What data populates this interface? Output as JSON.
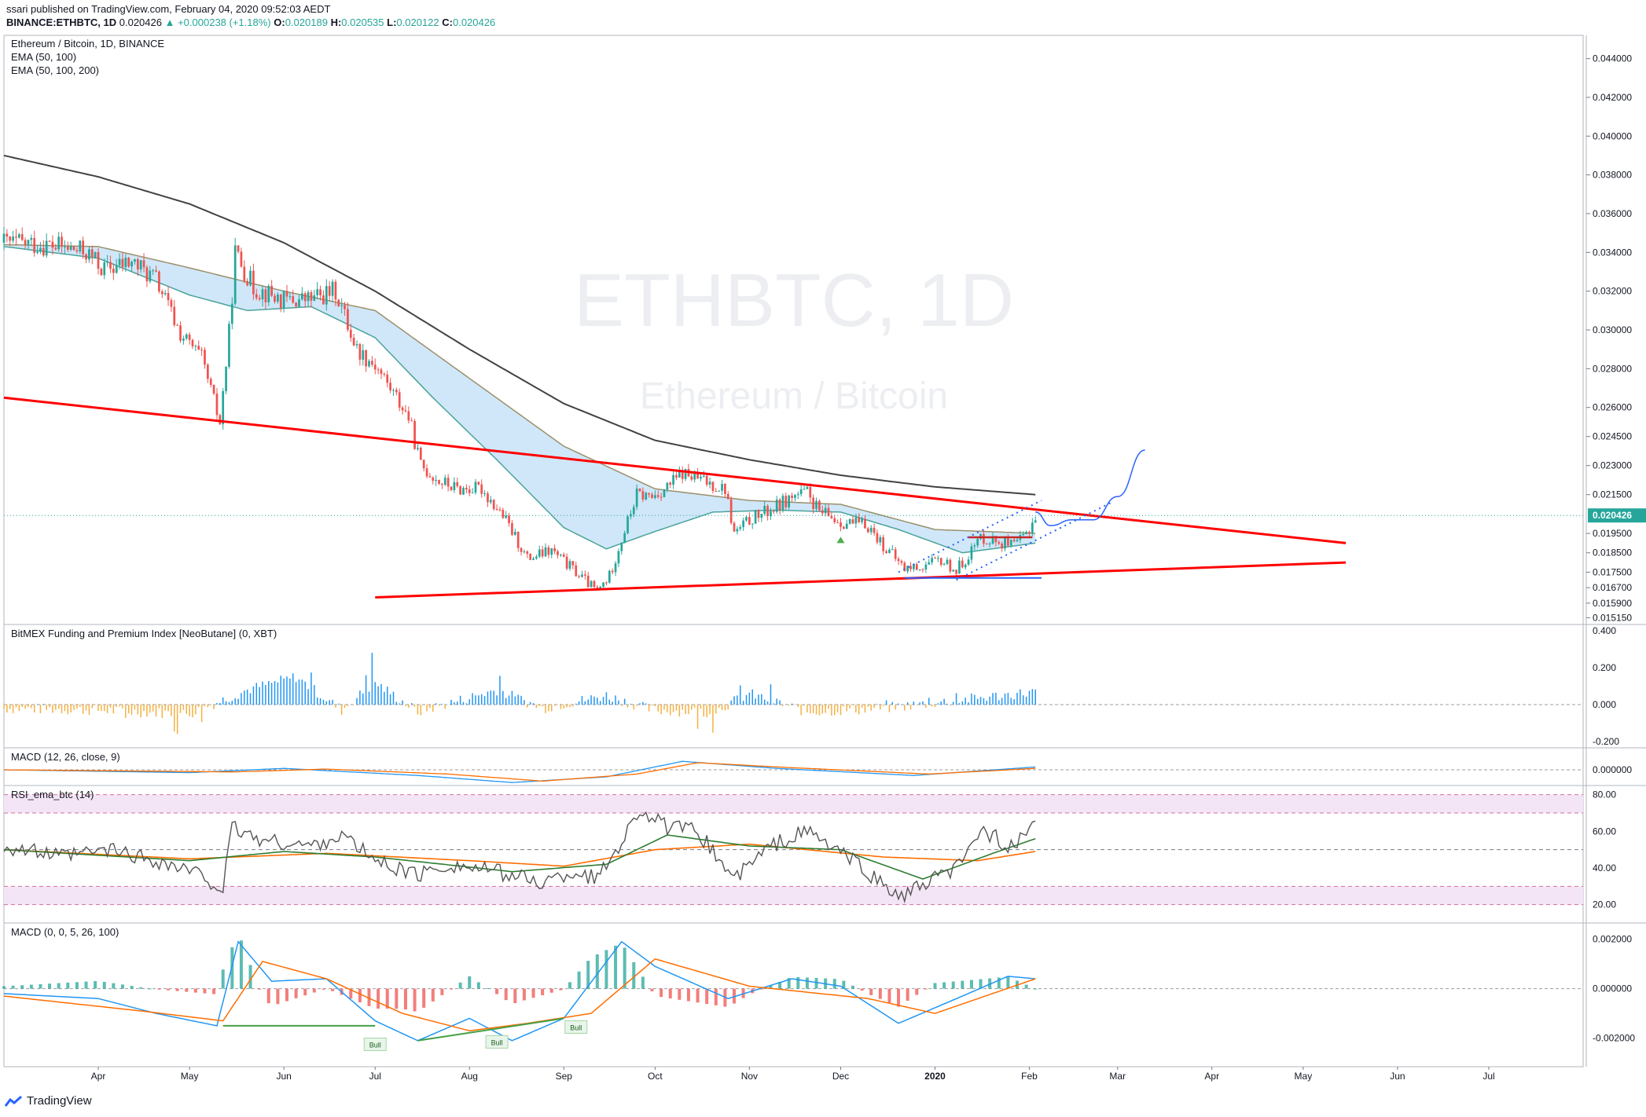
{
  "header": {
    "published": "ssari published on TradingView.com, February 04, 2020 09:52:03 AEDT",
    "symbol": "BINANCE:ETHBTC, 1D",
    "last": "0.020426",
    "change": "▲ +0.000238 (+1.18%)",
    "open_label": "O:",
    "open": "0.020189",
    "high_label": "H:",
    "high": "0.020535",
    "low_label": "L:",
    "low": "0.020122",
    "close_label": "C:",
    "close": "0.020426"
  },
  "brand": {
    "name": "TradingView"
  },
  "colors": {
    "up": "#26a69a",
    "down": "#ef5350",
    "trend": "#ff0000",
    "ema_band": "#bfdff7",
    "ema50": "#4aa39a",
    "ema100": "#9c8f6a",
    "ema200": "#424242",
    "blue": "#2962ff",
    "macd": "#2196f3",
    "signal": "#ff6d00",
    "rsi": "#555555",
    "rsi_band": "#f3e5f5",
    "funding_up": "#2196f3",
    "funding_down": "#f5b041",
    "bull": "#1b5e20"
  },
  "chart_data": [
    {
      "type": "candlestick",
      "title": "Ethereum / Bitcoin, 1D, BINANCE",
      "indicators": [
        "EMA (50, 100)",
        "EMA (50, 100, 200)"
      ],
      "watermark_symbol": "ETHBTC, 1D",
      "watermark_name": "Ethereum / Bitcoin",
      "last_price": "0.020426",
      "ylim": [
        0.0148,
        0.0452
      ],
      "y_ticks": [
        "0.044000",
        "0.042000",
        "0.040000",
        "0.038000",
        "0.036000",
        "0.034000",
        "0.032000",
        "0.030000",
        "0.028000",
        "0.026000",
        "0.024500",
        "0.023000",
        "0.021500",
        "0.019500",
        "0.018500",
        "0.017500",
        "0.016700",
        "0.015900",
        "0.015150"
      ],
      "x_ticks": [
        {
          "label": "Apr",
          "date": "2019-04-01"
        },
        {
          "label": "May",
          "date": "2019-05-01"
        },
        {
          "label": "Jun",
          "date": "2019-06-01"
        },
        {
          "label": "Jul",
          "date": "2019-07-01"
        },
        {
          "label": "Aug",
          "date": "2019-08-01"
        },
        {
          "label": "Sep",
          "date": "2019-09-01"
        },
        {
          "label": "Oct",
          "date": "2019-10-01"
        },
        {
          "label": "Nov",
          "date": "2019-11-01"
        },
        {
          "label": "Dec",
          "date": "2019-12-01"
        },
        {
          "label": "2020",
          "date": "2020-01-01"
        },
        {
          "label": "Feb",
          "date": "2020-02-01"
        },
        {
          "label": "Mar",
          "date": "2020-03-01"
        },
        {
          "label": "Apr",
          "date": "2020-04-01"
        },
        {
          "label": "May",
          "date": "2020-05-01"
        },
        {
          "label": "Jun",
          "date": "2020-06-01"
        },
        {
          "label": "Jul",
          "date": "2020-07-01"
        }
      ],
      "close_series": [
        [
          "2019-03-01",
          0.0345
        ],
        [
          "2019-03-15",
          0.0344
        ],
        [
          "2019-03-28",
          0.034
        ],
        [
          "2019-04-03",
          0.0331
        ],
        [
          "2019-04-12",
          0.0335
        ],
        [
          "2019-04-20",
          0.0326
        ],
        [
          "2019-04-28",
          0.0298
        ],
        [
          "2019-05-05",
          0.0285
        ],
        [
          "2019-05-11",
          0.0252
        ],
        [
          "2019-05-14",
          0.0298
        ],
        [
          "2019-05-16",
          0.034
        ],
        [
          "2019-05-22",
          0.0322
        ],
        [
          "2019-06-01",
          0.0315
        ],
        [
          "2019-06-10",
          0.0316
        ],
        [
          "2019-06-18",
          0.032
        ],
        [
          "2019-06-25",
          0.029
        ],
        [
          "2019-07-01",
          0.0282
        ],
        [
          "2019-07-06",
          0.027
        ],
        [
          "2019-07-12",
          0.0255
        ],
        [
          "2019-07-16",
          0.023
        ],
        [
          "2019-07-22",
          0.0222
        ],
        [
          "2019-07-28",
          0.0218
        ],
        [
          "2019-08-05",
          0.0218
        ],
        [
          "2019-08-12",
          0.0204
        ],
        [
          "2019-08-20",
          0.0182
        ],
        [
          "2019-08-28",
          0.0186
        ],
        [
          "2019-09-05",
          0.0175
        ],
        [
          "2019-09-12",
          0.0165
        ],
        [
          "2019-09-16",
          0.0173
        ],
        [
          "2019-09-20",
          0.0192
        ],
        [
          "2019-09-25",
          0.0215
        ],
        [
          "2019-09-30",
          0.0214
        ],
        [
          "2019-10-05",
          0.0219
        ],
        [
          "2019-10-10",
          0.0226
        ],
        [
          "2019-10-17",
          0.0222
        ],
        [
          "2019-10-24",
          0.0218
        ],
        [
          "2019-10-27",
          0.0195
        ],
        [
          "2019-11-02",
          0.0203
        ],
        [
          "2019-11-08",
          0.0207
        ],
        [
          "2019-11-15",
          0.0214
        ],
        [
          "2019-11-20",
          0.0216
        ],
        [
          "2019-11-24",
          0.0206
        ],
        [
          "2019-12-01",
          0.0201
        ],
        [
          "2019-12-10",
          0.0199
        ],
        [
          "2019-12-16",
          0.0187
        ],
        [
          "2019-12-22",
          0.0177
        ],
        [
          "2019-12-28",
          0.0178
        ],
        [
          "2020-01-03",
          0.0181
        ],
        [
          "2020-01-08",
          0.0176
        ],
        [
          "2020-01-12",
          0.0184
        ],
        [
          "2020-01-16",
          0.0193
        ],
        [
          "2020-01-22",
          0.0191
        ],
        [
          "2020-01-27",
          0.0188
        ],
        [
          "2020-01-31",
          0.0195
        ],
        [
          "2020-02-03",
          0.0204
        ]
      ],
      "ema200": [
        [
          "2019-03-01",
          0.039
        ],
        [
          "2019-04-01",
          0.0379
        ],
        [
          "2019-05-01",
          0.0365
        ],
        [
          "2019-06-01",
          0.0345
        ],
        [
          "2019-07-01",
          0.032
        ],
        [
          "2019-08-01",
          0.029
        ],
        [
          "2019-09-01",
          0.0262
        ],
        [
          "2019-10-01",
          0.0243
        ],
        [
          "2019-11-01",
          0.0233
        ],
        [
          "2019-12-01",
          0.0225
        ],
        [
          "2020-01-01",
          0.0219
        ],
        [
          "2020-02-03",
          0.0215
        ]
      ],
      "ema50": [
        [
          "2019-03-01",
          0.0343
        ],
        [
          "2019-04-01",
          0.0337
        ],
        [
          "2019-05-01",
          0.0318
        ],
        [
          "2019-05-20",
          0.031
        ],
        [
          "2019-06-10",
          0.0312
        ],
        [
          "2019-07-01",
          0.0296
        ],
        [
          "2019-07-20",
          0.0265
        ],
        [
          "2019-08-10",
          0.0233
        ],
        [
          "2019-09-01",
          0.0198
        ],
        [
          "2019-09-15",
          0.0187
        ],
        [
          "2019-10-01",
          0.0196
        ],
        [
          "2019-10-20",
          0.0206
        ],
        [
          "2019-11-10",
          0.0207
        ],
        [
          "2019-12-01",
          0.0206
        ],
        [
          "2019-12-20",
          0.0197
        ],
        [
          "2020-01-10",
          0.0185
        ],
        [
          "2020-02-03",
          0.019
        ]
      ],
      "ema100": [
        [
          "2019-03-01",
          0.0344
        ],
        [
          "2019-04-01",
          0.0343
        ],
        [
          "2019-05-01",
          0.0332
        ],
        [
          "2019-06-01",
          0.032
        ],
        [
          "2019-07-01",
          0.031
        ],
        [
          "2019-08-01",
          0.0275
        ],
        [
          "2019-09-01",
          0.024
        ],
        [
          "2019-10-01",
          0.0218
        ],
        [
          "2019-11-01",
          0.0212
        ],
        [
          "2019-12-01",
          0.021
        ],
        [
          "2020-01-01",
          0.0197
        ],
        [
          "2020-02-03",
          0.0195
        ]
      ],
      "annotations": {
        "upper_trendline": [
          [
            "2019-03-01",
            0.0265
          ],
          [
            "2020-05-15",
            0.019
          ]
        ],
        "lower_trendline": [
          [
            "2019-07-01",
            0.0162
          ],
          [
            "2020-05-15",
            0.018
          ]
        ],
        "box_top": [
          [
            "2020-01-12",
            0.0193
          ],
          [
            "2020-02-02",
            0.0193
          ]
        ],
        "support_line": [
          [
            "2019-12-22",
            0.0172
          ],
          [
            "2020-02-05",
            0.0172
          ]
        ],
        "channel_top": [
          [
            "2019-12-20",
            0.0175
          ],
          [
            "2020-02-05",
            0.0212
          ]
        ],
        "channel_bottom": [
          [
            "2020-01-08",
            0.0171
          ],
          [
            "2020-02-28",
            0.0211
          ]
        ],
        "projection": [
          [
            "2020-02-03",
            0.0206
          ],
          [
            "2020-02-08",
            0.0199
          ],
          [
            "2020-02-15",
            0.0202
          ],
          [
            "2020-02-22",
            0.0202
          ],
          [
            "2020-03-01",
            0.0214
          ],
          [
            "2020-03-10",
            0.0238
          ]
        ]
      }
    },
    {
      "type": "bar",
      "title": "BitMEX Funding and Premium Index [NeoButane] (0, XBT)",
      "y_ticks": [
        "0.400",
        "0.200",
        "0.000",
        "-0.200"
      ],
      "ylim": [
        -0.2,
        0.4
      ],
      "profile": [
        [
          "2019-03-01",
          -0.02
        ],
        [
          "2019-04-01",
          -0.03
        ],
        [
          "2019-05-01",
          -0.05
        ],
        [
          "2019-05-20",
          0.08
        ],
        [
          "2019-06-05",
          0.15
        ],
        [
          "2019-06-20",
          -0.03
        ],
        [
          "2019-07-01",
          0.12
        ],
        [
          "2019-07-15",
          -0.04
        ],
        [
          "2019-08-10",
          0.08
        ],
        [
          "2019-08-25",
          -0.02
        ],
        [
          "2019-09-15",
          0.05
        ],
        [
          "2019-09-30",
          -0.03
        ],
        [
          "2019-10-20",
          -0.04
        ],
        [
          "2019-11-01",
          0.06
        ],
        [
          "2019-11-20",
          -0.04
        ],
        [
          "2019-12-15",
          -0.02
        ],
        [
          "2020-01-01",
          0.01
        ],
        [
          "2020-02-03",
          0.07
        ]
      ]
    },
    {
      "type": "line",
      "title": "MACD (12, 26, close, 9)",
      "y_ticks": [
        "0.000000"
      ],
      "macd": [
        [
          "2019-03-01",
          0.0
        ],
        [
          "2019-05-01",
          -0.2
        ],
        [
          "2019-06-01",
          0.1
        ],
        [
          "2019-07-15",
          -0.4
        ],
        [
          "2019-08-15",
          -0.9
        ],
        [
          "2019-09-15",
          -0.5
        ],
        [
          "2019-10-10",
          0.6
        ],
        [
          "2019-11-10",
          0.1
        ],
        [
          "2019-12-25",
          -0.4
        ],
        [
          "2020-02-03",
          0.2
        ]
      ],
      "signal": [
        [
          "2019-03-01",
          0.0
        ],
        [
          "2019-05-15",
          -0.15
        ],
        [
          "2019-06-15",
          0.05
        ],
        [
          "2019-07-25",
          -0.3
        ],
        [
          "2019-08-25",
          -0.8
        ],
        [
          "2019-09-25",
          -0.3
        ],
        [
          "2019-10-15",
          0.5
        ],
        [
          "2019-11-15",
          0.15
        ],
        [
          "2019-12-30",
          -0.3
        ],
        [
          "2020-02-03",
          0.1
        ]
      ]
    },
    {
      "type": "line",
      "title": "RSI_ema_btc (14)",
      "ylim": [
        10,
        85
      ],
      "y_ticks": [
        "80.00",
        "60.00",
        "40.00",
        "20.00"
      ],
      "bands": [
        [
          70,
          80
        ],
        [
          20,
          30
        ]
      ],
      "mid": 50,
      "rsi": [
        [
          "2019-03-01",
          52
        ],
        [
          "2019-03-20",
          46
        ],
        [
          "2019-04-05",
          50
        ],
        [
          "2019-04-20",
          44
        ],
        [
          "2019-05-05",
          36
        ],
        [
          "2019-05-12",
          28
        ],
        [
          "2019-05-15",
          62
        ],
        [
          "2019-05-25",
          55
        ],
        [
          "2019-06-10",
          52
        ],
        [
          "2019-06-20",
          58
        ],
        [
          "2019-07-01",
          44
        ],
        [
          "2019-07-15",
          36
        ],
        [
          "2019-07-25",
          42
        ],
        [
          "2019-08-10",
          38
        ],
        [
          "2019-08-25",
          32
        ],
        [
          "2019-09-05",
          38
        ],
        [
          "2019-09-12",
          34
        ],
        [
          "2019-09-20",
          55
        ],
        [
          "2019-09-26",
          72
        ],
        [
          "2019-10-05",
          62
        ],
        [
          "2019-10-15",
          60
        ],
        [
          "2019-10-27",
          34
        ],
        [
          "2019-11-08",
          52
        ],
        [
          "2019-11-20",
          60
        ],
        [
          "2019-12-05",
          44
        ],
        [
          "2019-12-20",
          24
        ],
        [
          "2019-12-28",
          30
        ],
        [
          "2020-01-10",
          42
        ],
        [
          "2020-01-16",
          62
        ],
        [
          "2020-01-27",
          50
        ],
        [
          "2020-02-03",
          67
        ]
      ],
      "ma_fast": [
        [
          "2019-03-01",
          50
        ],
        [
          "2019-05-01",
          44
        ],
        [
          "2019-06-01",
          49
        ],
        [
          "2019-07-01",
          46
        ],
        [
          "2019-08-15",
          38
        ],
        [
          "2019-09-15",
          42
        ],
        [
          "2019-10-05",
          58
        ],
        [
          "2019-11-01",
          52
        ],
        [
          "2019-12-01",
          50
        ],
        [
          "2019-12-28",
          34
        ],
        [
          "2020-01-20",
          48
        ],
        [
          "2020-02-03",
          56
        ]
      ],
      "ma_slow": [
        [
          "2019-03-01",
          50
        ],
        [
          "2019-05-01",
          45
        ],
        [
          "2019-06-15",
          48
        ],
        [
          "2019-08-01",
          44
        ],
        [
          "2019-09-01",
          41
        ],
        [
          "2019-10-01",
          50
        ],
        [
          "2019-11-01",
          53
        ],
        [
          "2019-12-15",
          46
        ],
        [
          "2020-01-15",
          44
        ],
        [
          "2020-02-03",
          49
        ]
      ]
    },
    {
      "type": "bar",
      "title": "MACD (0, 0, 5, 26, 100)",
      "y_ticks": [
        "0.002000",
        "0.000000",
        "-0.002000"
      ],
      "ylim": [
        -0.0029,
        0.0024
      ],
      "bull_labels": [
        "Bull",
        "Bull",
        "Bull"
      ],
      "macd": [
        [
          "2019-03-01",
          -0.0002
        ],
        [
          "2019-04-01",
          -0.0004
        ],
        [
          "2019-04-20",
          -0.001
        ],
        [
          "2019-05-10",
          -0.0015
        ],
        [
          "2019-05-17",
          0.0019
        ],
        [
          "2019-05-28",
          0.0003
        ],
        [
          "2019-06-15",
          0.0004
        ],
        [
          "2019-07-01",
          -0.0013
        ],
        [
          "2019-07-15",
          -0.0021
        ],
        [
          "2019-08-01",
          -0.0012
        ],
        [
          "2019-08-15",
          -0.0021
        ],
        [
          "2019-09-01",
          -0.0012
        ],
        [
          "2019-09-20",
          0.0019
        ],
        [
          "2019-10-01",
          0.0009
        ],
        [
          "2019-10-25",
          -0.0004
        ],
        [
          "2019-11-15",
          0.0004
        ],
        [
          "2019-12-01",
          0.0001
        ],
        [
          "2019-12-20",
          -0.0014
        ],
        [
          "2020-01-10",
          -0.0003
        ],
        [
          "2020-01-25",
          0.0005
        ],
        [
          "2020-02-03",
          0.0004
        ]
      ],
      "signal": [
        [
          "2019-03-01",
          -0.0003
        ],
        [
          "2019-04-15",
          -0.0009
        ],
        [
          "2019-05-12",
          -0.0013
        ],
        [
          "2019-05-25",
          0.0011
        ],
        [
          "2019-06-15",
          0.0004
        ],
        [
          "2019-07-10",
          -0.001
        ],
        [
          "2019-08-01",
          -0.0017
        ],
        [
          "2019-08-20",
          -0.0014
        ],
        [
          "2019-09-10",
          -0.001
        ],
        [
          "2019-10-01",
          0.0012
        ],
        [
          "2019-11-01",
          0.0001
        ],
        [
          "2019-12-10",
          -0.0004
        ],
        [
          "2020-01-01",
          -0.001
        ],
        [
          "2020-02-03",
          0.0004
        ]
      ]
    }
  ]
}
